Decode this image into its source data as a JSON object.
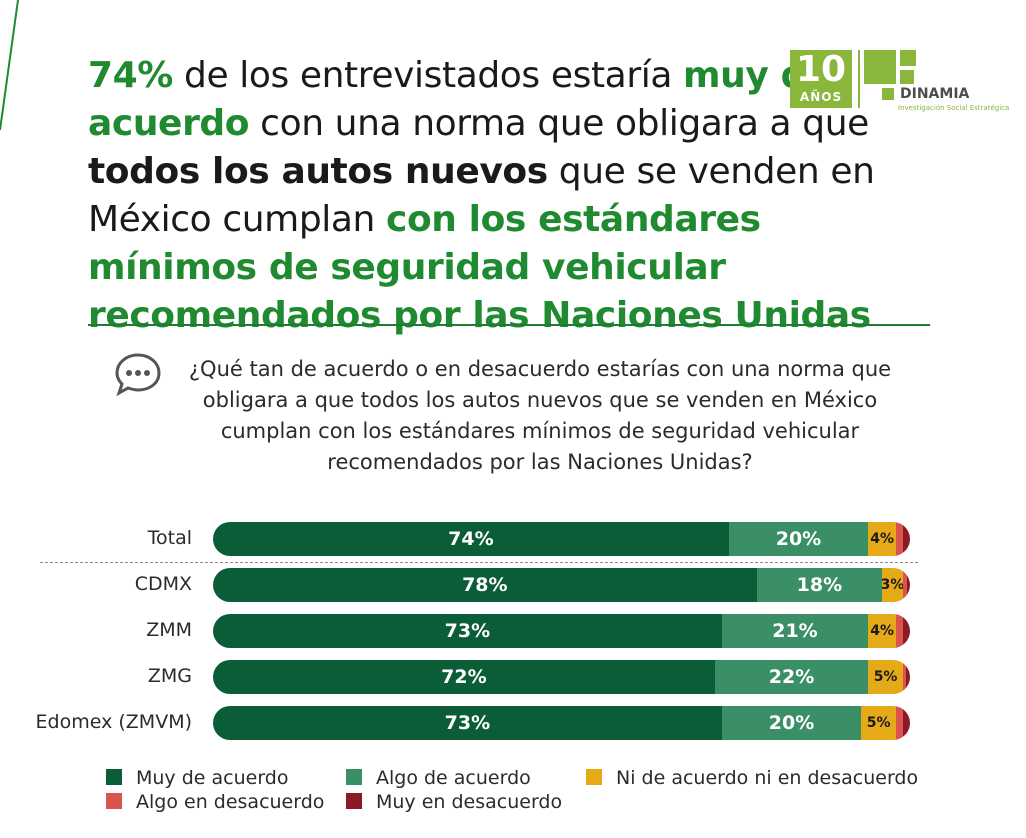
{
  "headline": {
    "p1": "74%",
    "p2": " de los entrevistados estaría ",
    "p3": "muy de acuerdo",
    "p4": " con una norma que obligara a que ",
    "p5": "todos los autos nuevos",
    "p6": " que se venden en México cumplan ",
    "p7": "con los estándares mínimos de seguridad vehicular recomendados por las Naciones Unidas"
  },
  "logo": {
    "number": "10",
    "years": "AÑOS",
    "brand": "DINAMIA",
    "tagline": "Investigación Social Estratégica"
  },
  "question": "¿Qué tan de acuerdo o en desacuerdo estarías con una norma que obligara a que todos los autos nuevos que se venden en México cumplan con los estándares mínimos de seguridad vehicular recomendados por las Naciones Unidas?",
  "colors": {
    "muy_de_acuerdo": "#0b5d38",
    "algo_de_acuerdo": "#3a8f67",
    "ni_ni": "#e6a917",
    "algo_en_desacuerdo": "#d9534f",
    "muy_en_desacuerdo": "#8b1a24",
    "accent_green": "#1f8a30"
  },
  "chart_data": {
    "type": "bar",
    "orientation": "horizontal",
    "stacked": true,
    "categories": [
      "Total",
      "CDMX",
      "ZMM",
      "ZMG",
      "Edomex (ZMVM)"
    ],
    "series": [
      {
        "name": "Muy de acuerdo",
        "values": [
          74,
          78,
          73,
          72,
          73
        ],
        "labels": [
          "74%",
          "78%",
          "73%",
          "72%",
          "73%"
        ]
      },
      {
        "name": "Algo de acuerdo",
        "values": [
          20,
          18,
          21,
          22,
          20
        ],
        "labels": [
          "20%",
          "18%",
          "21%",
          "22%",
          "20%"
        ]
      },
      {
        "name": "Ni de acuerdo ni en desacuerdo",
        "values": [
          4,
          3,
          4,
          5,
          5
        ],
        "labels": [
          "4%",
          "3%",
          "4%",
          "5%",
          "5%"
        ]
      },
      {
        "name": "Algo en desacuerdo",
        "values": [
          1,
          0.5,
          1,
          0.5,
          1
        ],
        "labels": [
          "",
          "",
          "",
          "",
          ""
        ]
      },
      {
        "name": "Muy en desacuerdo",
        "values": [
          1,
          0.5,
          1,
          0.5,
          1
        ],
        "labels": [
          "",
          "",
          "",
          "",
          ""
        ]
      }
    ],
    "legend_position": "bottom",
    "xlim": [
      0,
      100
    ]
  }
}
